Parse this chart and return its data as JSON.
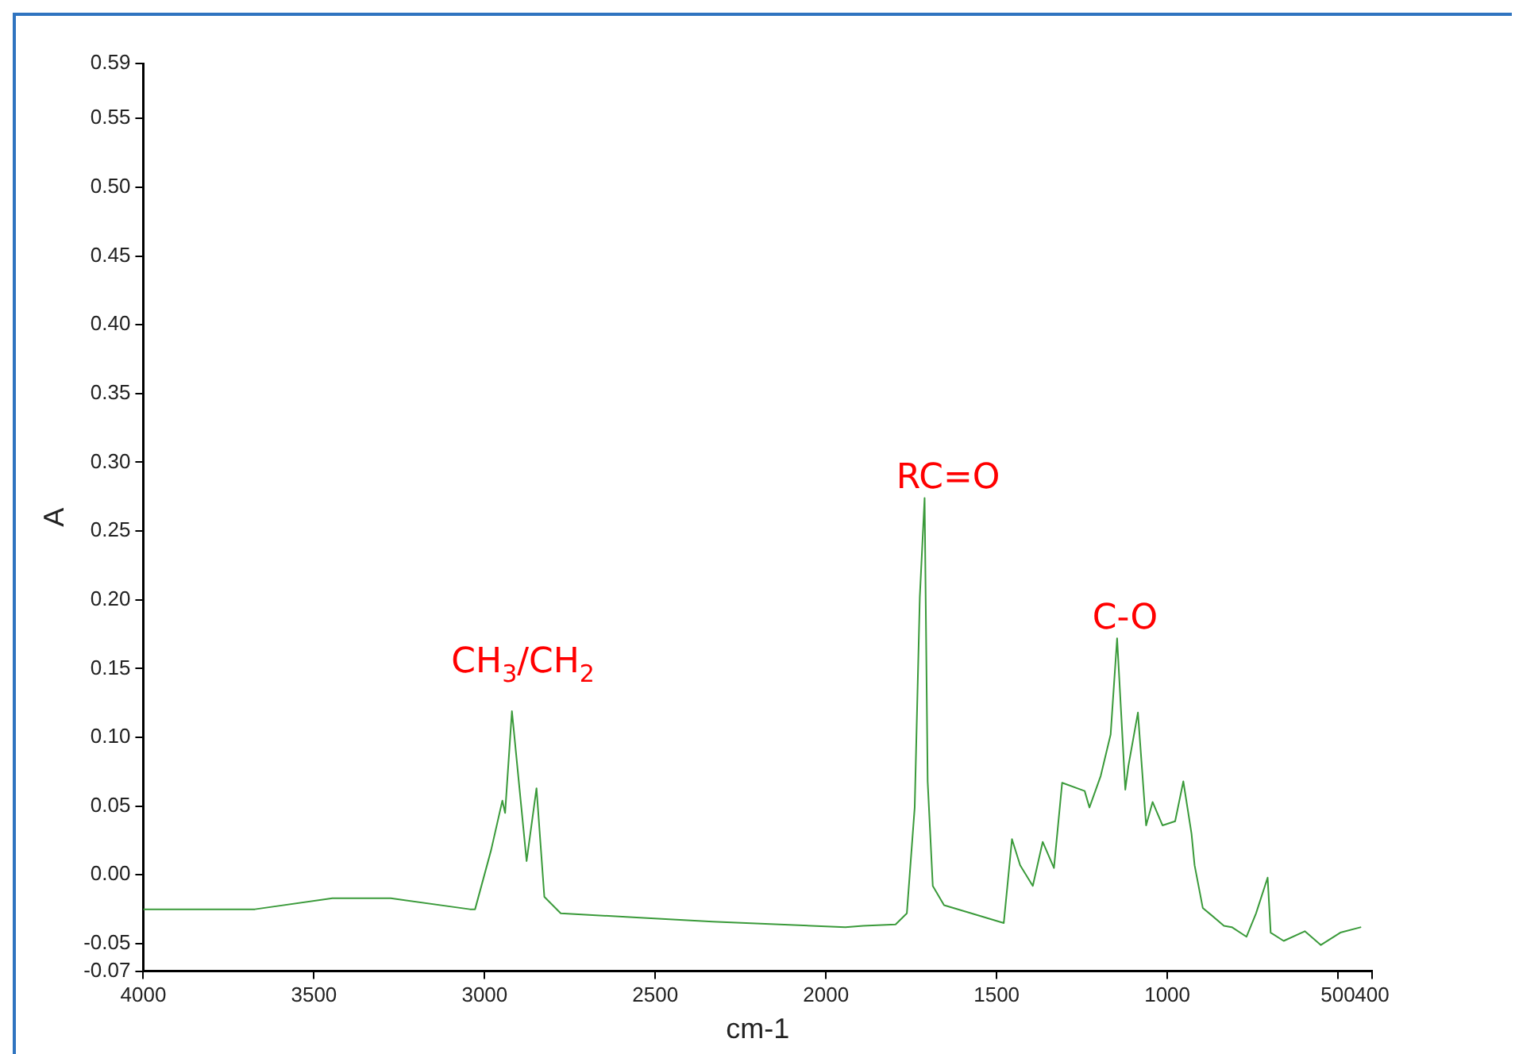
{
  "chart_data": {
    "type": "line",
    "xlabel": "cm-1",
    "ylabel": "A",
    "xlim": [
      4000,
      400
    ],
    "xticks": [
      4000,
      3500,
      3000,
      2500,
      2000,
      1500,
      1000,
      500,
      400
    ],
    "ylim": [
      -0.07,
      0.59
    ],
    "yticks": [
      {
        "value": -0.07,
        "label": "-0.07"
      },
      {
        "value": -0.05,
        "label": "-0.05"
      },
      {
        "value": 0,
        "label": "0.00"
      },
      {
        "value": 0.05,
        "label": "0.05"
      },
      {
        "value": 0.1,
        "label": "0.10"
      },
      {
        "value": 0.15,
        "label": "0.15"
      },
      {
        "value": 0.2,
        "label": "0.20"
      },
      {
        "value": 0.25,
        "label": "0.25"
      },
      {
        "value": 0.3,
        "label": "0.30"
      },
      {
        "value": 0.35,
        "label": "0.35"
      },
      {
        "value": 0.4,
        "label": "0.40"
      },
      {
        "value": 0.45,
        "label": "0.45"
      },
      {
        "value": 0.5,
        "label": "0.50"
      },
      {
        "value": 0.55,
        "label": "0.55"
      },
      {
        "value": 0.59,
        "label": "0.59"
      }
    ],
    "grid": false,
    "legend": false,
    "marker": "none",
    "line_style": "solid",
    "annotations": [
      "CH$_{3}$/CH$_{2}$",
      "RC=O",
      "C-O"
    ],
    "series": [
      {
        "color": "#3a9a3a",
        "x": [
          4000,
          3673,
          3446,
          3275,
          3043,
          3028,
          2981,
          2948,
          2940,
          2920,
          2877,
          2848,
          2825,
          2777,
          2555,
          2332,
          1943,
          1891,
          1796,
          1763,
          1740,
          1725,
          1711,
          1702,
          1687,
          1654,
          1574,
          1479,
          1455,
          1431,
          1394,
          1365,
          1332,
          1308,
          1242,
          1228,
          1195,
          1166,
          1147,
          1123,
          1114,
          1086,
          1062,
          1043,
          1014,
          977,
          953,
          929,
          920,
          896,
          834,
          811,
          768,
          740,
          706,
          697,
          659,
          597,
          550,
          493,
          432
        ],
        "values": [
          -0.025,
          -0.025,
          -0.017,
          -0.017,
          -0.025,
          -0.025,
          0.018,
          0.054,
          0.045,
          0.119,
          0.01,
          0.063,
          -0.016,
          -0.028,
          -0.031,
          -0.034,
          -0.038,
          -0.037,
          -0.036,
          -0.028,
          0.049,
          0.202,
          0.274,
          0.068,
          -0.008,
          -0.022,
          -0.028,
          -0.035,
          0.026,
          0.007,
          -0.008,
          0.024,
          0.005,
          0.067,
          0.061,
          0.049,
          0.072,
          0.102,
          0.172,
          0.062,
          0.079,
          0.118,
          0.036,
          0.053,
          0.036,
          0.039,
          0.068,
          0.03,
          0.007,
          -0.024,
          -0.037,
          -0.038,
          -0.045,
          -0.028,
          -0.002,
          -0.042,
          -0.048,
          -0.041,
          -0.051,
          -0.042,
          -0.038
        ]
      }
    ]
  }
}
